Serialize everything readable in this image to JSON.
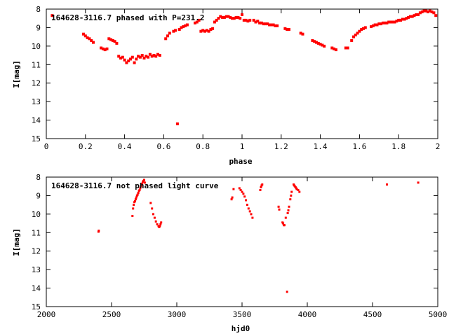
{
  "chart_data": [
    {
      "type": "scatter",
      "title": "164628-3116.7 phased with P=231.2",
      "xlabel": "phase",
      "ylabel": "I[mag]",
      "xlim": [
        0,
        2
      ],
      "ylim": [
        8,
        15
      ],
      "y_inverted": true,
      "x_ticks": [
        "0",
        "0.2",
        "0.4",
        "0.6",
        "0.8",
        "1",
        "1.2",
        "1.4",
        "1.6",
        "1.8",
        "2"
      ],
      "y_ticks": [
        "8",
        "9",
        "10",
        "11",
        "12",
        "13",
        "14",
        "15"
      ],
      "grid": false,
      "marker_color": "#ff0000",
      "series": [
        {
          "points": [
            [
              0.03,
              8.35
            ],
            [
              0.19,
              9.35
            ],
            [
              0.2,
              9.45
            ],
            [
              0.21,
              9.55
            ],
            [
              0.22,
              9.6
            ],
            [
              0.23,
              9.7
            ],
            [
              0.24,
              9.8
            ],
            [
              0.28,
              10.1
            ],
            [
              0.29,
              10.15
            ],
            [
              0.3,
              10.2
            ],
            [
              0.31,
              10.15
            ],
            [
              0.32,
              9.6
            ],
            [
              0.33,
              9.65
            ],
            [
              0.34,
              9.7
            ],
            [
              0.35,
              9.75
            ],
            [
              0.36,
              9.85
            ],
            [
              0.37,
              10.55
            ],
            [
              0.38,
              10.65
            ],
            [
              0.39,
              10.6
            ],
            [
              0.4,
              10.75
            ],
            [
              0.41,
              10.9
            ],
            [
              0.42,
              10.8
            ],
            [
              0.43,
              10.7
            ],
            [
              0.44,
              10.6
            ],
            [
              0.45,
              10.9
            ],
            [
              0.46,
              10.7
            ],
            [
              0.47,
              10.55
            ],
            [
              0.48,
              10.6
            ],
            [
              0.49,
              10.5
            ],
            [
              0.5,
              10.65
            ],
            [
              0.51,
              10.55
            ],
            [
              0.52,
              10.6
            ],
            [
              0.53,
              10.45
            ],
            [
              0.54,
              10.55
            ],
            [
              0.55,
              10.5
            ],
            [
              0.56,
              10.55
            ],
            [
              0.57,
              10.45
            ],
            [
              0.58,
              10.5
            ],
            [
              0.61,
              9.6
            ],
            [
              0.62,
              9.45
            ],
            [
              0.63,
              9.3
            ],
            [
              0.65,
              9.2
            ],
            [
              0.66,
              9.15
            ],
            [
              0.67,
              14.2
            ],
            [
              0.68,
              9.1
            ],
            [
              0.69,
              9.0
            ],
            [
              0.7,
              8.95
            ],
            [
              0.71,
              8.9
            ],
            [
              0.72,
              8.85
            ],
            [
              0.76,
              8.75
            ],
            [
              0.77,
              8.7
            ],
            [
              0.78,
              8.6
            ],
            [
              0.79,
              9.2
            ],
            [
              0.8,
              9.15
            ],
            [
              0.81,
              9.2
            ],
            [
              0.82,
              9.15
            ],
            [
              0.83,
              9.2
            ],
            [
              0.84,
              9.1
            ],
            [
              0.85,
              9.05
            ],
            [
              0.86,
              8.7
            ],
            [
              0.87,
              8.6
            ],
            [
              0.88,
              8.5
            ],
            [
              0.89,
              8.4
            ],
            [
              0.9,
              8.45
            ],
            [
              0.91,
              8.45
            ],
            [
              0.92,
              8.4
            ],
            [
              0.93,
              8.4
            ],
            [
              0.94,
              8.45
            ],
            [
              0.95,
              8.5
            ],
            [
              0.96,
              8.5
            ],
            [
              0.97,
              8.45
            ],
            [
              0.98,
              8.45
            ],
            [
              0.99,
              8.5
            ],
            [
              1.0,
              8.3
            ],
            [
              1.01,
              8.6
            ],
            [
              1.02,
              8.6
            ],
            [
              1.03,
              8.65
            ],
            [
              1.04,
              8.6
            ],
            [
              1.06,
              8.6
            ],
            [
              1.07,
              8.7
            ],
            [
              1.08,
              8.65
            ],
            [
              1.09,
              8.75
            ],
            [
              1.1,
              8.75
            ],
            [
              1.11,
              8.8
            ],
            [
              1.12,
              8.8
            ],
            [
              1.13,
              8.8
            ],
            [
              1.14,
              8.85
            ],
            [
              1.15,
              8.85
            ],
            [
              1.16,
              8.85
            ],
            [
              1.17,
              8.9
            ],
            [
              1.18,
              8.9
            ],
            [
              1.22,
              9.05
            ],
            [
              1.23,
              9.1
            ],
            [
              1.24,
              9.1
            ],
            [
              1.3,
              9.3
            ],
            [
              1.31,
              9.35
            ],
            [
              1.36,
              9.7
            ],
            [
              1.37,
              9.75
            ],
            [
              1.38,
              9.8
            ],
            [
              1.39,
              9.85
            ],
            [
              1.4,
              9.9
            ],
            [
              1.41,
              9.95
            ],
            [
              1.42,
              10.0
            ],
            [
              1.46,
              10.1
            ],
            [
              1.47,
              10.15
            ],
            [
              1.48,
              10.2
            ],
            [
              1.53,
              10.1
            ],
            [
              1.54,
              10.1
            ],
            [
              1.56,
              9.7
            ],
            [
              1.57,
              9.5
            ],
            [
              1.58,
              9.4
            ],
            [
              1.59,
              9.3
            ],
            [
              1.6,
              9.2
            ],
            [
              1.61,
              9.1
            ],
            [
              1.62,
              9.05
            ],
            [
              1.63,
              9.0
            ],
            [
              1.66,
              8.95
            ],
            [
              1.67,
              8.9
            ],
            [
              1.68,
              8.85
            ],
            [
              1.69,
              8.85
            ],
            [
              1.7,
              8.8
            ],
            [
              1.71,
              8.8
            ],
            [
              1.72,
              8.75
            ],
            [
              1.73,
              8.75
            ],
            [
              1.74,
              8.75
            ],
            [
              1.75,
              8.7
            ],
            [
              1.76,
              8.7
            ],
            [
              1.77,
              8.7
            ],
            [
              1.78,
              8.7
            ],
            [
              1.79,
              8.65
            ],
            [
              1.8,
              8.6
            ],
            [
              1.81,
              8.6
            ],
            [
              1.82,
              8.55
            ],
            [
              1.83,
              8.55
            ],
            [
              1.84,
              8.5
            ],
            [
              1.85,
              8.45
            ],
            [
              1.86,
              8.4
            ],
            [
              1.87,
              8.4
            ],
            [
              1.88,
              8.35
            ],
            [
              1.89,
              8.3
            ],
            [
              1.9,
              8.3
            ],
            [
              1.91,
              8.2
            ],
            [
              1.92,
              8.15
            ],
            [
              1.93,
              8.1
            ],
            [
              1.94,
              8.1
            ],
            [
              1.95,
              8.15
            ],
            [
              1.96,
              8.1
            ],
            [
              1.97,
              8.15
            ],
            [
              1.98,
              8.2
            ],
            [
              1.99,
              8.35
            ]
          ]
        }
      ]
    },
    {
      "type": "scatter",
      "title": "164628-3116.7 not phased light curve",
      "xlabel": "hjd0",
      "ylabel": "I[mag]",
      "xlim": [
        2000,
        5000
      ],
      "ylim": [
        8,
        15
      ],
      "y_inverted": true,
      "x_ticks": [
        "2000",
        "2500",
        "3000",
        "3500",
        "4000",
        "4500",
        "5000"
      ],
      "y_ticks": [
        "8",
        "9",
        "10",
        "11",
        "12",
        "13",
        "14",
        "15"
      ],
      "grid": false,
      "marker_color": "#ff0000",
      "series": [
        {
          "points": [
            [
              2400,
              10.95
            ],
            [
              2402,
              10.9
            ],
            [
              2660,
              10.1
            ],
            [
              2665,
              9.7
            ],
            [
              2670,
              9.5
            ],
            [
              2675,
              9.35
            ],
            [
              2680,
              9.3
            ],
            [
              2685,
              9.2
            ],
            [
              2690,
              9.1
            ],
            [
              2695,
              9.0
            ],
            [
              2700,
              8.95
            ],
            [
              2705,
              8.85
            ],
            [
              2710,
              8.75
            ],
            [
              2715,
              8.7
            ],
            [
              2720,
              8.6
            ],
            [
              2725,
              8.5
            ],
            [
              2730,
              8.4
            ],
            [
              2735,
              8.35
            ],
            [
              2740,
              8.25
            ],
            [
              2745,
              8.2
            ],
            [
              2750,
              8.15
            ],
            [
              2755,
              8.3
            ],
            [
              2800,
              9.4
            ],
            [
              2810,
              9.7
            ],
            [
              2820,
              10.0
            ],
            [
              2830,
              10.2
            ],
            [
              2840,
              10.4
            ],
            [
              2850,
              10.55
            ],
            [
              2860,
              10.65
            ],
            [
              2865,
              10.7
            ],
            [
              2870,
              10.65
            ],
            [
              2875,
              10.55
            ],
            [
              2880,
              10.45
            ],
            [
              3420,
              9.2
            ],
            [
              3425,
              9.1
            ],
            [
              3435,
              8.65
            ],
            [
              3480,
              8.6
            ],
            [
              3490,
              8.7
            ],
            [
              3500,
              8.8
            ],
            [
              3510,
              8.9
            ],
            [
              3520,
              9.05
            ],
            [
              3530,
              9.25
            ],
            [
              3540,
              9.5
            ],
            [
              3550,
              9.7
            ],
            [
              3560,
              9.85
            ],
            [
              3570,
              10.0
            ],
            [
              3580,
              10.2
            ],
            [
              3640,
              8.7
            ],
            [
              3645,
              8.55
            ],
            [
              3650,
              8.45
            ],
            [
              3655,
              8.4
            ],
            [
              3780,
              9.6
            ],
            [
              3785,
              9.75
            ],
            [
              3810,
              10.45
            ],
            [
              3815,
              10.5
            ],
            [
              3820,
              10.6
            ],
            [
              3825,
              10.6
            ],
            [
              3835,
              10.2
            ],
            [
              3845,
              14.2
            ],
            [
              3850,
              9.95
            ],
            [
              3855,
              9.8
            ],
            [
              3860,
              9.6
            ],
            [
              3870,
              9.2
            ],
            [
              3875,
              9.0
            ],
            [
              3880,
              8.8
            ],
            [
              3895,
              8.4
            ],
            [
              3900,
              8.45
            ],
            [
              3905,
              8.5
            ],
            [
              3910,
              8.55
            ],
            [
              3915,
              8.6
            ],
            [
              3920,
              8.65
            ],
            [
              3930,
              8.7
            ],
            [
              3940,
              8.8
            ],
            [
              4610,
              8.4
            ],
            [
              4850,
              8.3
            ]
          ]
        }
      ]
    }
  ]
}
